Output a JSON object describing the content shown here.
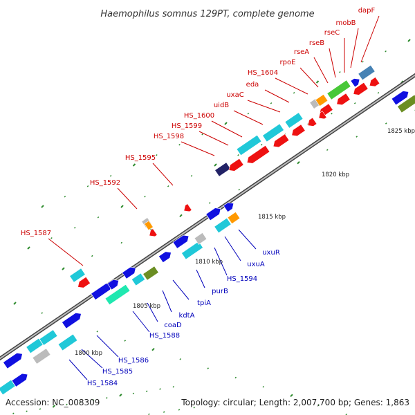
{
  "map": {
    "title": "Haemophilus somnus 129PT, complete genome",
    "accession": "Accession: NC_008309",
    "summary": "Topology: circular; Length: 2,007,700 bp; Genes: 1,863"
  },
  "scale_labels": [
    "1800 kbp",
    "1805 kbp",
    "1810 kbp",
    "1815 kbp",
    "1820 kbp",
    "1825 kbp"
  ],
  "top_labels": [
    "HS_1587",
    "HS_1592",
    "HS_1595",
    "HS_1598",
    "HS_1599",
    "HS_1600",
    "uidB",
    "uxaC",
    "eda",
    "HS_1604",
    "rpoE",
    "rseA",
    "rseB",
    "rseC",
    "mobB",
    "dapF"
  ],
  "bottom_labels": [
    "HS_1584",
    "HS_1585",
    "HS_1586",
    "HS_1588",
    "coaD",
    "kdtA",
    "tpiA",
    "purB",
    "HS_1594",
    "uxuA",
    "uxuR"
  ],
  "colors": {
    "forward_gene": "#1010e0",
    "reverse_gene": "#ee1111",
    "cyan_gene": "#20c8d8",
    "teal_gene": "#20e8b0",
    "green_gene": "#48c838",
    "olive_gene": "#6b8e23",
    "orange_gene": "#ff9900",
    "gray_gene": "#bbbbbb",
    "steel_gene": "#4682b4",
    "navy_gene": "#222266",
    "backbone": "#888888",
    "tick": "#2e8b2e",
    "label_red": "#cc0000",
    "label_blue": "#0000bb"
  }
}
